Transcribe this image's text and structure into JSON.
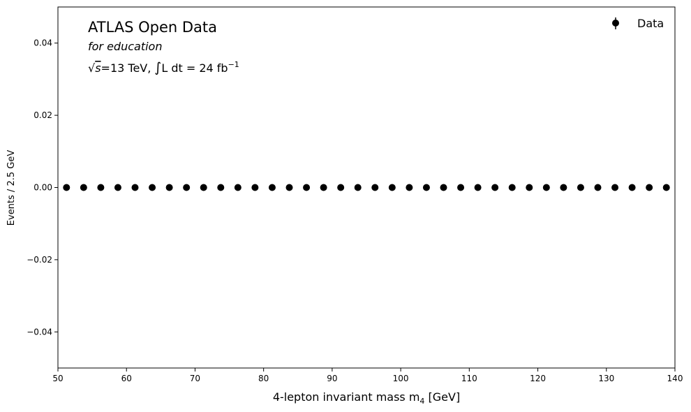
{
  "chart_data": {
    "type": "scatter",
    "title_lines": {
      "main": "ATLAS Open Data",
      "sub": "for education",
      "energy": {
        "sqrt_symbol": "√",
        "s": "s",
        "rest": "=13 TeV, ",
        "integral": "∫",
        "lumi": "L dt = 24 fb",
        "exp": "−1"
      }
    },
    "xlabel": {
      "text": "4-lepton invariant mass m",
      "sub": "4",
      "unit": " [GeV]"
    },
    "ylabel": "Events / 2.5 GeV",
    "xlim": [
      50,
      140
    ],
    "ylim": [
      -0.05,
      0.05
    ],
    "xticks": [
      50,
      60,
      70,
      80,
      90,
      100,
      110,
      120,
      130,
      140
    ],
    "xtick_labels": [
      "50",
      "60",
      "70",
      "80",
      "90",
      "100",
      "110",
      "120",
      "130",
      "140"
    ],
    "yticks": [
      -0.04,
      -0.02,
      0.0,
      0.02,
      0.04
    ],
    "ytick_labels": [
      "−0.04",
      "−0.02",
      "0.00",
      "0.02",
      "0.04"
    ],
    "legend": {
      "position": "top-right",
      "entries": [
        {
          "label": "Data",
          "color": "#000000"
        }
      ]
    },
    "series": [
      {
        "name": "Data",
        "color": "#000000",
        "x": [
          51.25,
          53.75,
          56.25,
          58.75,
          61.25,
          63.75,
          66.25,
          68.75,
          71.25,
          73.75,
          76.25,
          78.75,
          81.25,
          83.75,
          86.25,
          88.75,
          91.25,
          93.75,
          96.25,
          98.75,
          101.25,
          103.75,
          106.25,
          108.75,
          111.25,
          113.75,
          116.25,
          118.75,
          121.25,
          123.75,
          126.25,
          128.75,
          131.25,
          133.75,
          136.25,
          138.75
        ],
        "y": [
          0,
          0,
          0,
          0,
          0,
          0,
          0,
          0,
          0,
          0,
          0,
          0,
          0,
          0,
          0,
          0,
          0,
          0,
          0,
          0,
          0,
          0,
          0,
          0,
          0,
          0,
          0,
          0,
          0,
          0,
          0,
          0,
          0,
          0,
          0,
          0
        ]
      }
    ],
    "grid": false
  }
}
